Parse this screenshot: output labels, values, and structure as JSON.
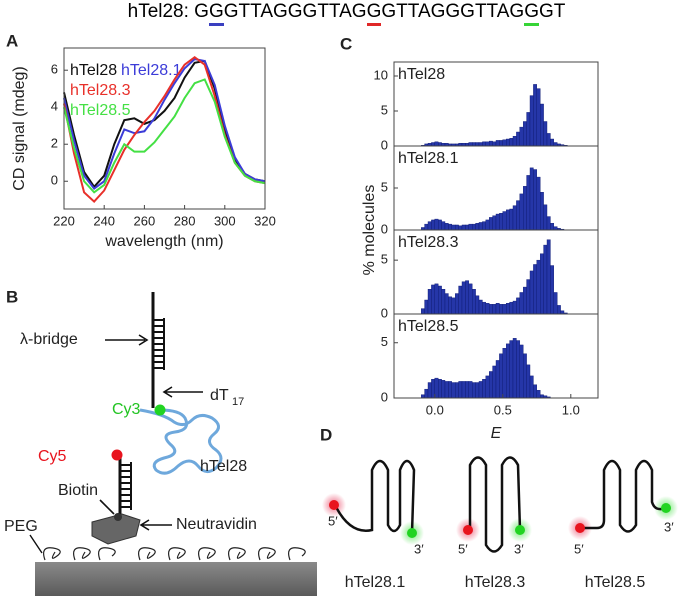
{
  "header": {
    "prefix": "hTel28: ",
    "segments": [
      {
        "text": "G"
      },
      {
        "text": "G",
        "underline": "#3a3fc0"
      },
      {
        "text": "GTTAGGGTTAG"
      },
      {
        "text": "G",
        "underline": "#e02828"
      },
      {
        "text": "GTTAGGGTTAG"
      },
      {
        "text": "G",
        "underline": "#36d436"
      },
      {
        "text": "GT"
      }
    ]
  },
  "chart_data": [
    {
      "type": "line",
      "label": "A",
      "xlabel": "wavelength (nm)",
      "ylabel": "CD signal (mdeg)",
      "x": [
        220,
        225,
        230,
        235,
        240,
        245,
        250,
        255,
        260,
        265,
        270,
        275,
        280,
        285,
        290,
        295,
        300,
        305,
        310,
        315,
        320
      ],
      "xlim": [
        220,
        320
      ],
      "xticks": [
        220,
        240,
        260,
        280,
        300,
        320
      ],
      "ylim": [
        -1.5,
        7.2
      ],
      "yticks": [
        0,
        2,
        4,
        6
      ],
      "series": [
        {
          "name": "hTel28",
          "color": "#111111",
          "values": [
            4.8,
            2.5,
            0.5,
            -0.3,
            0.3,
            2.0,
            3.3,
            3.4,
            3.1,
            3.3,
            3.8,
            4.5,
            5.6,
            6.4,
            6.5,
            5.0,
            2.8,
            1.2,
            0.4,
            0.1,
            0.0
          ]
        },
        {
          "name": "hTel28.1",
          "color": "#3c3cd8",
          "values": [
            4.5,
            2.2,
            0.3,
            -0.4,
            0.0,
            1.5,
            2.8,
            2.6,
            2.7,
            3.4,
            4.4,
            5.3,
            6.1,
            6.6,
            6.5,
            5.2,
            3.0,
            1.3,
            0.4,
            0.1,
            0.0
          ]
        },
        {
          "name": "hTel28.3",
          "color": "#e8302a",
          "values": [
            4.2,
            1.5,
            -0.6,
            -1.1,
            -0.5,
            0.6,
            1.7,
            2.5,
            3.2,
            3.8,
            4.6,
            5.5,
            6.3,
            6.7,
            6.3,
            4.6,
            2.5,
            1.0,
            0.3,
            0.0,
            -0.1
          ]
        },
        {
          "name": "hTel28.5",
          "color": "#44e044",
          "values": [
            4.0,
            1.8,
            0.0,
            -0.6,
            -0.2,
            1.0,
            2.0,
            1.6,
            1.6,
            2.1,
            2.8,
            3.5,
            4.5,
            5.3,
            5.5,
            4.3,
            2.4,
            1.0,
            0.3,
            0.0,
            -0.1
          ]
        }
      ]
    },
    {
      "type": "histogram",
      "title": "hTel28",
      "color": "#2536a8",
      "xlim": [
        -0.3,
        1.2
      ],
      "ylim": [
        0,
        12
      ],
      "yticks": [
        0,
        5,
        10
      ],
      "bins": [
        -0.1,
        -0.075,
        -0.05,
        -0.025,
        0,
        0.025,
        0.05,
        0.075,
        0.1,
        0.125,
        0.15,
        0.175,
        0.2,
        0.225,
        0.25,
        0.275,
        0.3,
        0.325,
        0.35,
        0.375,
        0.4,
        0.425,
        0.45,
        0.475,
        0.5,
        0.525,
        0.55,
        0.575,
        0.6,
        0.625,
        0.65,
        0.675,
        0.7,
        0.725,
        0.75,
        0.775,
        0.8,
        0.825,
        0.85,
        0.875,
        0.9,
        0.925,
        0.95,
        0.975,
        1.0
      ],
      "values": [
        0.1,
        0.3,
        0.4,
        0.5,
        0.6,
        0.5,
        0.4,
        0.4,
        0.3,
        0.3,
        0.3,
        0.4,
        0.4,
        0.4,
        0.5,
        0.5,
        0.5,
        0.5,
        0.6,
        0.6,
        0.7,
        0.6,
        0.8,
        0.8,
        0.9,
        1.0,
        1.1,
        1.4,
        2.0,
        2.7,
        3.5,
        4.8,
        7.2,
        8.8,
        8.2,
        6.0,
        3.5,
        1.8,
        1.0,
        0.5,
        0.3,
        0.2,
        0.1,
        0.0
      ]
    },
    {
      "type": "histogram",
      "title": "hTel28.1",
      "color": "#2536a8",
      "xlim": [
        -0.3,
        1.2
      ],
      "ylim": [
        0,
        10
      ],
      "yticks": [
        0,
        5
      ],
      "bins": [
        -0.1,
        -0.075,
        -0.05,
        -0.025,
        0,
        0.025,
        0.05,
        0.075,
        0.1,
        0.125,
        0.15,
        0.175,
        0.2,
        0.225,
        0.25,
        0.275,
        0.3,
        0.325,
        0.35,
        0.375,
        0.4,
        0.425,
        0.45,
        0.475,
        0.5,
        0.525,
        0.55,
        0.575,
        0.6,
        0.625,
        0.65,
        0.675,
        0.7,
        0.725,
        0.75,
        0.775,
        0.8,
        0.825,
        0.85,
        0.875,
        0.9,
        0.925,
        0.95,
        0.975,
        1.0
      ],
      "values": [
        0.3,
        0.7,
        1.0,
        1.2,
        1.3,
        1.2,
        1.0,
        0.8,
        0.7,
        0.6,
        0.6,
        0.5,
        0.6,
        0.6,
        0.7,
        0.7,
        0.8,
        0.9,
        1.0,
        1.2,
        1.5,
        1.7,
        1.9,
        2.0,
        2.2,
        2.4,
        2.5,
        2.9,
        3.5,
        4.3,
        5.2,
        6.5,
        7.4,
        7.2,
        6.3,
        4.5,
        3.0,
        1.6,
        0.8,
        0.4,
        0.2,
        0.1,
        0.0,
        0.0
      ]
    },
    {
      "type": "histogram",
      "title": "hTel28.3",
      "color": "#2536a8",
      "xlim": [
        -0.3,
        1.2
      ],
      "ylim": [
        0,
        7.8
      ],
      "yticks": [
        0,
        5
      ],
      "bins": [
        -0.1,
        -0.075,
        -0.05,
        -0.025,
        0,
        0.025,
        0.05,
        0.075,
        0.1,
        0.125,
        0.15,
        0.175,
        0.2,
        0.225,
        0.25,
        0.275,
        0.3,
        0.325,
        0.35,
        0.375,
        0.4,
        0.425,
        0.45,
        0.475,
        0.5,
        0.525,
        0.55,
        0.575,
        0.6,
        0.625,
        0.65,
        0.675,
        0.7,
        0.725,
        0.75,
        0.775,
        0.8,
        0.825,
        0.85,
        0.875,
        0.9,
        0.925,
        0.95,
        0.975,
        1.0
      ],
      "values": [
        0.5,
        1.3,
        2.3,
        2.7,
        2.8,
        2.6,
        2.3,
        1.9,
        1.6,
        1.5,
        1.9,
        2.6,
        3.0,
        3.1,
        2.8,
        2.3,
        1.7,
        1.3,
        1.1,
        1.0,
        0.9,
        0.9,
        1.0,
        0.9,
        0.9,
        1.0,
        1.1,
        1.2,
        1.5,
        2.0,
        2.5,
        3.2,
        4.0,
        4.6,
        5.0,
        5.6,
        6.4,
        6.9,
        4.5,
        2.0,
        0.8,
        0.3,
        0.1,
        0.0
      ]
    },
    {
      "type": "histogram",
      "title": "hTel28.5",
      "color": "#2536a8",
      "xlim": [
        -0.3,
        1.2
      ],
      "ylim": [
        0,
        7.6
      ],
      "yticks": [
        0,
        5
      ],
      "xticks": [
        {
          "value": 0,
          "label": "0.0"
        },
        0.5,
        {
          "value": 1,
          "label": "1.0"
        }
      ],
      "bins": [
        -0.1,
        -0.075,
        -0.05,
        -0.025,
        0,
        0.025,
        0.05,
        0.075,
        0.1,
        0.125,
        0.15,
        0.175,
        0.2,
        0.225,
        0.25,
        0.275,
        0.3,
        0.325,
        0.35,
        0.375,
        0.4,
        0.425,
        0.45,
        0.475,
        0.5,
        0.525,
        0.55,
        0.575,
        0.6,
        0.625,
        0.65,
        0.675,
        0.7,
        0.725,
        0.75,
        0.775,
        0.8,
        0.825,
        0.85,
        0.875,
        0.9,
        0.925,
        0.95,
        0.975,
        1.0
      ],
      "values": [
        0.3,
        0.8,
        1.4,
        1.7,
        1.8,
        1.7,
        1.6,
        1.5,
        1.5,
        1.4,
        1.4,
        1.5,
        1.5,
        1.5,
        1.5,
        1.4,
        1.4,
        1.5,
        1.7,
        2.0,
        2.4,
        2.9,
        3.4,
        4.0,
        4.5,
        4.9,
        5.2,
        5.4,
        5.2,
        4.8,
        4.0,
        3.0,
        2.0,
        1.2,
        0.7,
        0.3,
        0.2,
        0.1,
        0.0,
        0.0,
        0.0,
        0.0,
        0.0,
        0.0
      ]
    }
  ],
  "panel_c": {
    "label": "C",
    "xlabel": "E",
    "ylabel": "% molecules"
  },
  "panel_b": {
    "label": "B",
    "bridge": "λ-bridge",
    "linker": "dT",
    "linker_sub": "17",
    "donor": "Cy3",
    "acceptor": "Cy5",
    "dna": "hTel28",
    "biotin": "Biotin",
    "neutravidin": "Neutravidin",
    "peg": "PEG"
  },
  "panel_d": {
    "label": "D",
    "constructs": [
      {
        "name": "hTel28.1",
        "five": "5′",
        "three": "3′"
      },
      {
        "name": "hTel28.3",
        "five": "5′",
        "three": "3′"
      },
      {
        "name": "hTel28.5",
        "five": "5′",
        "three": "3′"
      }
    ]
  }
}
